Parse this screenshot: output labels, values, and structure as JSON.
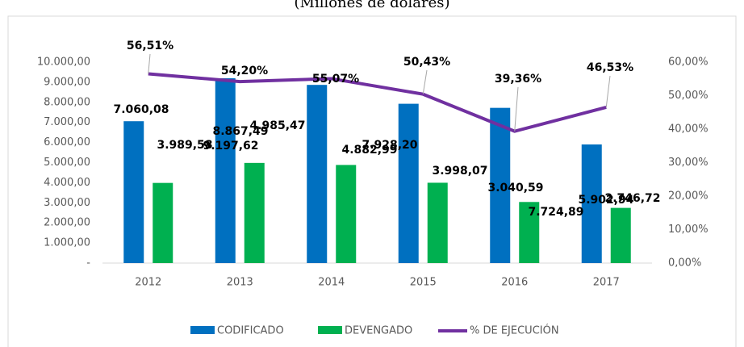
{
  "chart_data": {
    "type": "bar",
    "subtitle": "(Millones de dólares)",
    "categories": [
      "2012",
      "2013",
      "2014",
      "2015",
      "2016",
      "2017"
    ],
    "series": [
      {
        "name": "CODIFICADO",
        "color": "#0070c0",
        "values": [
          7060.08,
          9197.62,
          8867.49,
          7928.2,
          7724.89,
          5902.94
        ],
        "value_labels": [
          "7.060,08",
          "9.197,62",
          "8.867,49",
          "7.928,20",
          "7.724,89",
          "5.902,94"
        ]
      },
      {
        "name": "DEVENGADO",
        "color": "#00b050",
        "values": [
          3989.58,
          4985.47,
          4882.99,
          3998.07,
          3040.59,
          2746.72
        ],
        "value_labels": [
          "3.989,58",
          "4.985,47",
          "4.882,99",
          "3.998,07",
          "3.040,59",
          "2.746,72"
        ]
      },
      {
        "name": "% DE EJECUCIÓN",
        "type": "line",
        "axis": "y2",
        "color": "#7030a0",
        "values": [
          56.51,
          54.2,
          55.07,
          50.43,
          39.36,
          46.53
        ],
        "value_labels": [
          "56,51%",
          "54,20%",
          "55,07%",
          "50,43%",
          "39,36%",
          "46,53%"
        ]
      }
    ],
    "ylim": [
      0,
      10000
    ],
    "yticks": [
      {
        "value": 0,
        "label": "-"
      },
      {
        "value": 1000,
        "label": "1.000,00"
      },
      {
        "value": 2000,
        "label": "2.000,00"
      },
      {
        "value": 3000,
        "label": "3.000,00"
      },
      {
        "value": 4000,
        "label": "4.000,00"
      },
      {
        "value": 5000,
        "label": "5.000,00"
      },
      {
        "value": 6000,
        "label": "6.000,00"
      },
      {
        "value": 7000,
        "label": "7.000,00"
      },
      {
        "value": 8000,
        "label": "8.000,00"
      },
      {
        "value": 9000,
        "label": "9.000,00"
      },
      {
        "value": 10000,
        "label": "10.000,00"
      }
    ],
    "y2lim": [
      0,
      60
    ],
    "y2ticks": [
      {
        "value": 0,
        "label": "0,00%"
      },
      {
        "value": 10,
        "label": "10,00%"
      },
      {
        "value": 20,
        "label": "20,00%"
      },
      {
        "value": 30,
        "label": "30,00%"
      },
      {
        "value": 40,
        "label": "40,00%"
      },
      {
        "value": 50,
        "label": "50,00%"
      },
      {
        "value": 60,
        "label": "60,00%"
      }
    ],
    "legend": "bottom"
  }
}
